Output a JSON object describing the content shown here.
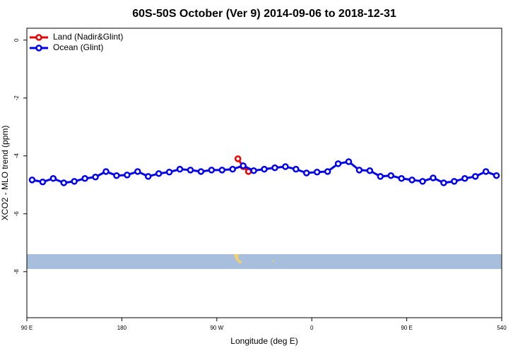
{
  "chart_data": {
    "type": "line",
    "title": "60S-50S October (Ver 9)   2014-09-06 to 2018-12-31",
    "x_label": "Longitude (deg E)",
    "y_label": "XCO2 - MLO trend (ppm)",
    "xlim": [
      90,
      540
    ],
    "ylim": [
      -9.59,
      0.41
    ],
    "xticks": [
      {
        "value": 90,
        "label": "90 E"
      },
      180,
      {
        "value": 270,
        "label": "90 W"
      },
      {
        "value": 360,
        "label": "0"
      },
      {
        "value": 450,
        "label": "90 E"
      },
      540
    ],
    "yticks": [
      0,
      -2,
      -4,
      -6,
      -8
    ],
    "legend": "top-left",
    "series": [
      {
        "name": "Land (Nadir&Glint)",
        "color": "#ee0000",
        "x": [
          290,
          295,
          300
        ],
        "values": [
          -4.1,
          -4.37,
          -4.54
        ]
      },
      {
        "name": "Ocean (Glint)",
        "color": "#0000ee",
        "x": [
          95,
          105,
          115,
          125,
          135,
          145,
          155,
          165,
          175,
          185,
          195,
          205,
          215,
          225,
          235,
          245,
          255,
          265,
          275,
          285,
          295,
          305,
          315,
          325,
          335,
          345,
          355,
          365,
          375,
          385,
          395,
          405,
          415,
          425,
          435,
          445,
          455,
          465,
          475,
          485,
          495,
          505,
          515,
          525,
          535
        ],
        "values": [
          -4.83,
          -4.9,
          -4.78,
          -4.93,
          -4.88,
          -4.78,
          -4.73,
          -4.54,
          -4.68,
          -4.66,
          -4.54,
          -4.71,
          -4.61,
          -4.56,
          -4.46,
          -4.49,
          -4.54,
          -4.49,
          -4.49,
          -4.46,
          -4.34,
          -4.51,
          -4.46,
          -4.41,
          -4.37,
          -4.46,
          -4.59,
          -4.56,
          -4.54,
          -4.27,
          -4.2,
          -4.49,
          -4.51,
          -4.71,
          -4.68,
          -4.78,
          -4.83,
          -4.88,
          -4.76,
          -4.93,
          -4.88,
          -4.78,
          -4.71,
          -4.54,
          -4.68
        ]
      }
    ]
  }
}
